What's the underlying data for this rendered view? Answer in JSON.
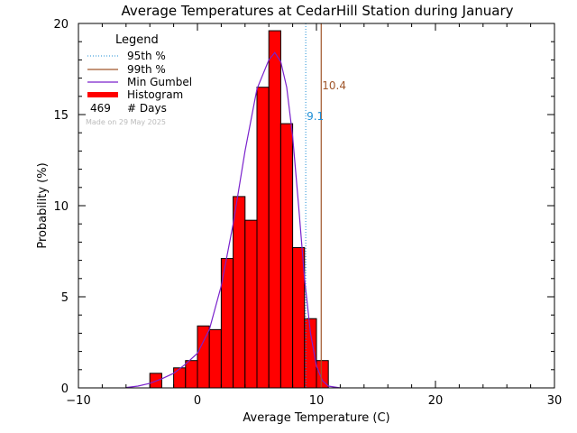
{
  "chart_data": {
    "type": "histogram",
    "title": "Average Temperatures at CedarHill Station during January",
    "xlabel": "Average Temperature (C)",
    "ylabel": "Probability (%)",
    "xlim": [
      -10,
      30
    ],
    "ylim": [
      0,
      20
    ],
    "x_ticks": [
      "−10",
      "0",
      "10",
      "20",
      "30"
    ],
    "y_ticks": [
      "0",
      "5",
      "10",
      "15",
      "20"
    ],
    "bin_width": 1,
    "bins": [
      {
        "x0": -4,
        "value": 0.8
      },
      {
        "x0": -3,
        "value": 0.0
      },
      {
        "x0": -2,
        "value": 1.1
      },
      {
        "x0": -1,
        "value": 1.5
      },
      {
        "x0": 0,
        "value": 3.4
      },
      {
        "x0": 1,
        "value": 3.2
      },
      {
        "x0": 2,
        "value": 7.1
      },
      {
        "x0": 3,
        "value": 10.5
      },
      {
        "x0": 4,
        "value": 9.2
      },
      {
        "x0": 5,
        "value": 16.5
      },
      {
        "x0": 6,
        "value": 19.6
      },
      {
        "x0": 7,
        "value": 14.5
      },
      {
        "x0": 8,
        "value": 7.7
      },
      {
        "x0": 9,
        "value": 3.8
      },
      {
        "x0": 10,
        "value": 1.5
      }
    ],
    "gumbel_curve": {
      "x": [
        -6,
        -5,
        -4,
        -3,
        -2,
        -1,
        0,
        1,
        2,
        3,
        4,
        5,
        6,
        6.5,
        7,
        7.5,
        8,
        8.5,
        9,
        9.5,
        10,
        10.5,
        11,
        12
      ],
      "y": [
        0.02,
        0.1,
        0.25,
        0.5,
        0.8,
        1.3,
        1.9,
        3.2,
        5.6,
        9.0,
        13.0,
        16.4,
        18.0,
        18.4,
        17.9,
        16.5,
        13.8,
        10.0,
        6.0,
        3.0,
        1.2,
        0.4,
        0.1,
        0.0
      ]
    },
    "percentile_95": {
      "label": "9.1",
      "value": 9.1
    },
    "percentile_99": {
      "label": "10.4",
      "value": 10.4
    },
    "legend": {
      "title": "Legend",
      "placement": "top-left",
      "items": [
        {
          "label": "95th %",
          "style": "dotted",
          "color": "#1f8fd6"
        },
        {
          "label": "99th %",
          "style": "solid",
          "color": "#a0562a"
        },
        {
          "label": "Min Gumbel",
          "style": "solid",
          "color": "#7a22cc"
        },
        {
          "label": "Histogram",
          "style": "thick",
          "color": "#ff0000"
        }
      ],
      "count_value": "469",
      "count_label": "# Days"
    },
    "made_on": "Made on 29 May 2025",
    "colors": {
      "histogram_fill": "#ff0000",
      "histogram_edge": "#000000",
      "p95": "#1f8fd6",
      "p99": "#a0562a",
      "gumbel": "#7a22cc",
      "made_on": "#bbbbbb"
    }
  }
}
